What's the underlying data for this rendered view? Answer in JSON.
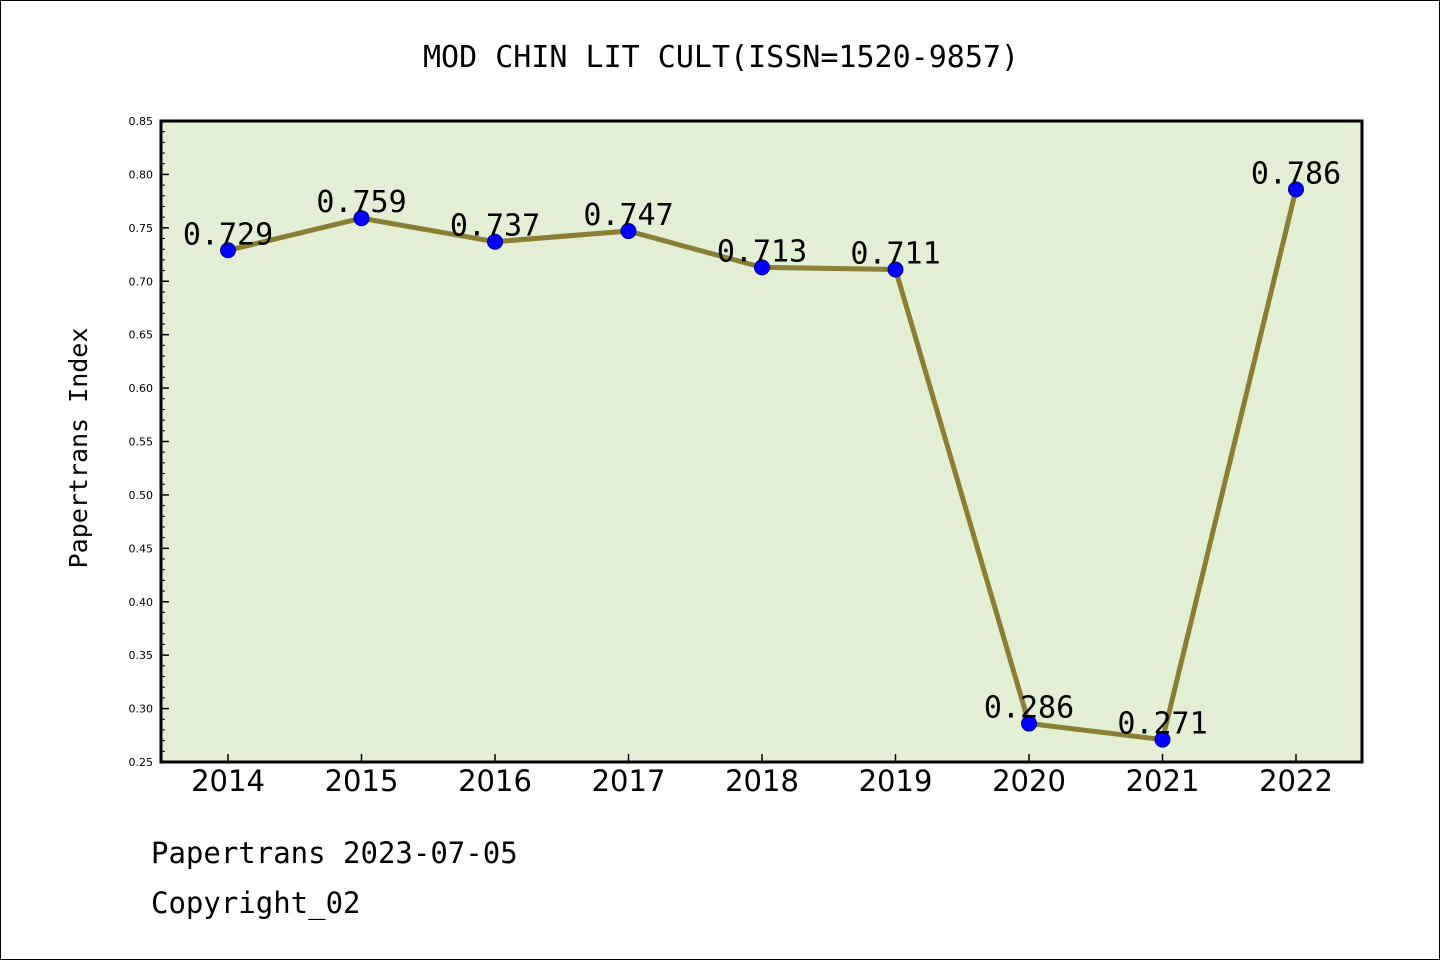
{
  "chart_data": {
    "type": "line",
    "title": "MOD CHIN LIT CULT(ISSN=1520-9857)",
    "xlabel": "",
    "ylabel": "Papertrans Index",
    "categories": [
      "2014",
      "2015",
      "2016",
      "2017",
      "2018",
      "2019",
      "2020",
      "2021",
      "2022"
    ],
    "series": [
      {
        "values": [
          0.729,
          0.759,
          0.737,
          0.747,
          0.713,
          0.711,
          0.286,
          0.271,
          0.786
        ],
        "value_labels": [
          "0.729",
          "0.759",
          "0.737",
          "0.747",
          "0.713",
          "0.711",
          "0.286",
          "0.271",
          "0.786"
        ]
      }
    ],
    "ylim": [
      0.25,
      0.85
    ],
    "yticks": [
      "0.25",
      "0.30",
      "0.35",
      "0.40",
      "0.45",
      "0.50",
      "0.55",
      "0.60",
      "0.65",
      "0.70",
      "0.75",
      "0.80",
      "0.85"
    ],
    "grid": false,
    "legend": "none",
    "colors": {
      "plot_background": "#e2efd5",
      "line": "#8b7d34",
      "marker": "#0000ff"
    }
  },
  "footer": {
    "source_line": "Papertrans 2023-07-05",
    "copyright_line": "Copyright_02"
  }
}
